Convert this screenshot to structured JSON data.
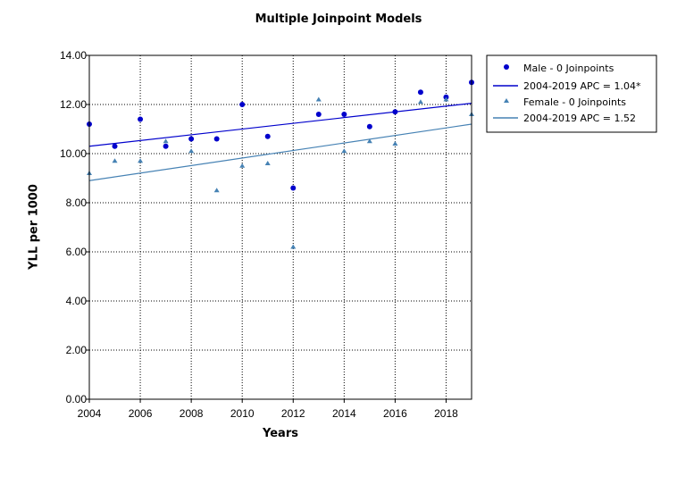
{
  "chart_data": {
    "type": "scatter",
    "title": "Multiple Joinpoint Models",
    "xlabel": "Years",
    "ylabel": "YLL per 1000",
    "xlim": [
      2004,
      2019
    ],
    "ylim": [
      0,
      14
    ],
    "x_ticks": [
      "2004",
      "2006",
      "2008",
      "2010",
      "2012",
      "2014",
      "2016",
      "2018"
    ],
    "y_ticks": [
      "0.00",
      "2.00",
      "4.00",
      "6.00",
      "8.00",
      "10.00",
      "12.00",
      "14.00"
    ],
    "grid": true,
    "legend_position": "top-right, outside plot",
    "series": [
      {
        "name": "Male - 0 Joinpoints",
        "marker": "circle",
        "color": "#0000CC",
        "x": [
          2004,
          2005,
          2006,
          2007,
          2008,
          2009,
          2010,
          2011,
          2012,
          2013,
          2014,
          2015,
          2016,
          2017,
          2018,
          2019
        ],
        "y": [
          11.2,
          10.3,
          11.4,
          10.3,
          10.6,
          10.6,
          12.0,
          10.7,
          8.6,
          11.6,
          11.6,
          11.1,
          11.7,
          12.5,
          12.3,
          12.9
        ]
      },
      {
        "name": "Female - 0 Joinpoints",
        "marker": "triangle",
        "color": "#4682B4",
        "x": [
          2004,
          2005,
          2006,
          2007,
          2008,
          2009,
          2010,
          2011,
          2012,
          2013,
          2014,
          2015,
          2016,
          2017,
          2018,
          2019
        ],
        "y": [
          9.2,
          9.7,
          9.7,
          10.5,
          10.1,
          8.5,
          9.5,
          9.6,
          6.2,
          12.2,
          10.1,
          10.5,
          10.4,
          12.1,
          12.2,
          11.6
        ]
      }
    ],
    "fits": [
      {
        "name": "2004-2019 APC  = 1.04*",
        "color": "#0000CC",
        "x": [
          2004,
          2019
        ],
        "y": [
          10.3,
          12.05
        ]
      },
      {
        "name": "2004-2019 APC  = 1.52",
        "color": "#4682B4",
        "x": [
          2004,
          2019
        ],
        "y": [
          8.9,
          11.2
        ]
      }
    ]
  }
}
